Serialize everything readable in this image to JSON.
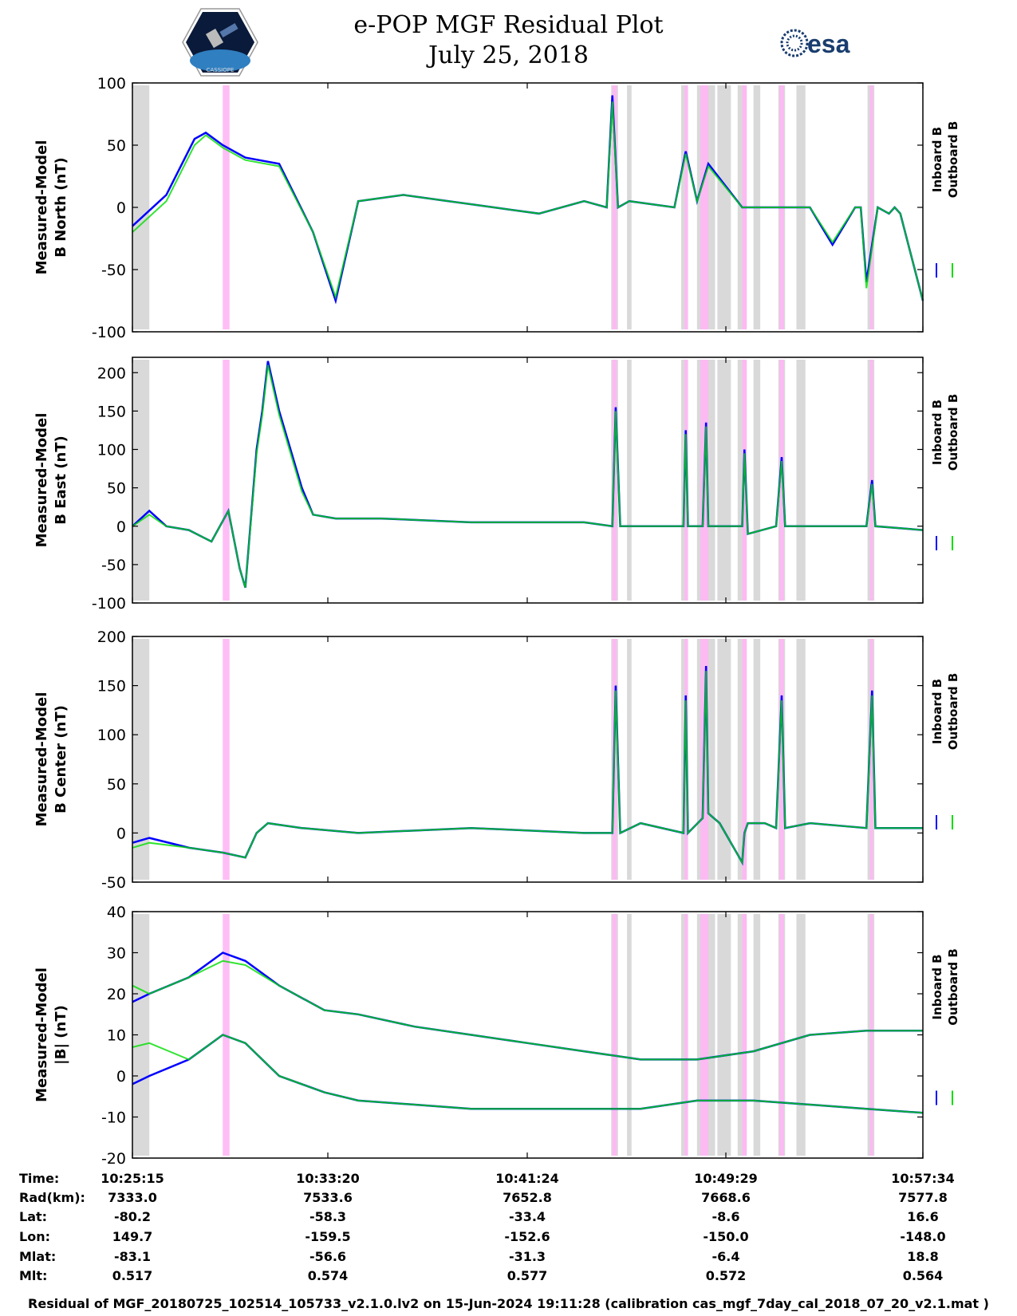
{
  "title": "e-POP MGF Residual Plot",
  "date": "July 25, 2018",
  "logos": {
    "esa_text": "esa",
    "cassiope_text": "CASSIOPE"
  },
  "colors": {
    "inboard": "#0000ff",
    "outboard": "#00dd00",
    "gray_band": "#d9d9d9",
    "pink_band": "#ffb6f5"
  },
  "legend": {
    "inboard_label": "Inboard B",
    "outboard_label": "Outboard B"
  },
  "chart_data": [
    {
      "type": "line",
      "ylabel_line1": "Measured-Model",
      "ylabel_line2": "B North (nT)",
      "ylim": [
        -100,
        100
      ],
      "yticks": [
        -100,
        -50,
        0,
        50,
        100
      ],
      "x": [
        0,
        30,
        55,
        65,
        80,
        100,
        130,
        160,
        180,
        200,
        240,
        280,
        320,
        360,
        400,
        420,
        425,
        430,
        440,
        480,
        490,
        500,
        510,
        540,
        560,
        580,
        600,
        620,
        640,
        645,
        650,
        660,
        670,
        675,
        680,
        700
      ],
      "series": [
        {
          "name": "Inboard B",
          "values": [
            -15,
            10,
            55,
            60,
            50,
            40,
            35,
            -20,
            -75,
            5,
            10,
            5,
            0,
            -5,
            5,
            0,
            90,
            0,
            5,
            0,
            45,
            5,
            35,
            0,
            0,
            0,
            0,
            -30,
            0,
            0,
            -60,
            0,
            -5,
            0,
            -5,
            -75
          ]
        },
        {
          "name": "Outboard B",
          "values": [
            -20,
            5,
            50,
            58,
            48,
            38,
            33,
            -20,
            -72,
            5,
            10,
            5,
            0,
            -5,
            5,
            0,
            85,
            0,
            5,
            0,
            43,
            5,
            33,
            0,
            0,
            0,
            0,
            -28,
            0,
            0,
            -65,
            0,
            -5,
            0,
            -5,
            -75
          ]
        }
      ],
      "gray_bands": [
        [
          0,
          15
        ],
        [
          424,
          430
        ],
        [
          438,
          442
        ],
        [
          486,
          492
        ],
        [
          500,
          516
        ],
        [
          518,
          530
        ],
        [
          536,
          544
        ],
        [
          550,
          556
        ],
        [
          572,
          578
        ],
        [
          588,
          596
        ],
        [
          651,
          657
        ]
      ],
      "pink_bands": [
        [
          80,
          86
        ],
        [
          425,
          429
        ],
        [
          489,
          492
        ],
        [
          503,
          510
        ],
        [
          540,
          544
        ],
        [
          573,
          577
        ],
        [
          653,
          656
        ]
      ]
    },
    {
      "type": "line",
      "ylabel_line1": "Measured-Model",
      "ylabel_line2": "B East (nT)",
      "ylim": [
        -100,
        220
      ],
      "yticks": [
        -100,
        -50,
        0,
        50,
        100,
        150,
        200
      ],
      "x": [
        0,
        15,
        30,
        50,
        70,
        85,
        95,
        100,
        110,
        115,
        120,
        130,
        150,
        160,
        180,
        220,
        300,
        400,
        425,
        428,
        432,
        450,
        488,
        490,
        492,
        505,
        508,
        510,
        520,
        540,
        542,
        545,
        570,
        575,
        578,
        600,
        650,
        655,
        658,
        700
      ],
      "series": [
        {
          "name": "Inboard B",
          "values": [
            0,
            20,
            0,
            -5,
            -20,
            20,
            -55,
            -80,
            100,
            150,
            215,
            150,
            50,
            15,
            10,
            10,
            5,
            5,
            0,
            155,
            0,
            0,
            0,
            125,
            0,
            0,
            135,
            0,
            0,
            0,
            100,
            -10,
            0,
            90,
            0,
            0,
            0,
            60,
            0,
            -5
          ]
        },
        {
          "name": "Outboard B",
          "values": [
            0,
            15,
            0,
            -5,
            -20,
            20,
            -55,
            -80,
            95,
            145,
            210,
            145,
            45,
            15,
            10,
            10,
            5,
            5,
            0,
            150,
            0,
            0,
            0,
            120,
            0,
            0,
            130,
            0,
            0,
            0,
            95,
            -10,
            0,
            85,
            0,
            0,
            0,
            55,
            0,
            -5
          ]
        }
      ],
      "gray_bands": [
        [
          0,
          15
        ],
        [
          424,
          430
        ],
        [
          438,
          442
        ],
        [
          486,
          492
        ],
        [
          500,
          516
        ],
        [
          518,
          530
        ],
        [
          536,
          544
        ],
        [
          550,
          556
        ],
        [
          572,
          578
        ],
        [
          588,
          596
        ],
        [
          651,
          657
        ]
      ],
      "pink_bands": [
        [
          80,
          86
        ],
        [
          425,
          429
        ],
        [
          489,
          492
        ],
        [
          503,
          510
        ],
        [
          540,
          544
        ],
        [
          573,
          577
        ],
        [
          653,
          656
        ]
      ]
    },
    {
      "type": "line",
      "ylabel_line1": "Measured-Model",
      "ylabel_line2": "B Center (nT)",
      "ylim": [
        -50,
        200
      ],
      "yticks": [
        -50,
        0,
        50,
        100,
        150,
        200
      ],
      "x": [
        0,
        15,
        50,
        80,
        100,
        110,
        120,
        150,
        200,
        300,
        400,
        425,
        428,
        432,
        450,
        488,
        490,
        492,
        505,
        508,
        510,
        520,
        540,
        542,
        545,
        560,
        570,
        575,
        578,
        600,
        650,
        655,
        658,
        700
      ],
      "series": [
        {
          "name": "Inboard B",
          "values": [
            -10,
            -5,
            -15,
            -20,
            -25,
            0,
            10,
            5,
            0,
            5,
            0,
            0,
            150,
            0,
            10,
            0,
            140,
            0,
            15,
            170,
            20,
            10,
            -30,
            0,
            10,
            10,
            5,
            140,
            5,
            10,
            5,
            145,
            5,
            5
          ]
        },
        {
          "name": "Outboard B",
          "values": [
            -15,
            -10,
            -15,
            -20,
            -25,
            0,
            10,
            5,
            0,
            5,
            0,
            0,
            145,
            0,
            10,
            0,
            135,
            0,
            15,
            165,
            20,
            10,
            -30,
            0,
            10,
            10,
            5,
            135,
            5,
            10,
            5,
            140,
            5,
            5
          ]
        }
      ],
      "gray_bands": [
        [
          0,
          15
        ],
        [
          424,
          430
        ],
        [
          438,
          442
        ],
        [
          486,
          492
        ],
        [
          500,
          516
        ],
        [
          518,
          530
        ],
        [
          536,
          544
        ],
        [
          550,
          556
        ],
        [
          572,
          578
        ],
        [
          588,
          596
        ],
        [
          651,
          657
        ]
      ],
      "pink_bands": [
        [
          80,
          86
        ],
        [
          425,
          429
        ],
        [
          489,
          492
        ],
        [
          503,
          510
        ],
        [
          540,
          544
        ],
        [
          573,
          577
        ],
        [
          653,
          656
        ]
      ]
    },
    {
      "type": "line",
      "ylabel_line1": "Measured-Model",
      "ylabel_line2": "|B| (nT)",
      "ylim": [
        -20,
        40
      ],
      "yticks": [
        -20,
        -10,
        0,
        10,
        20,
        30,
        40
      ],
      "x": [
        0,
        15,
        50,
        80,
        100,
        130,
        170,
        200,
        250,
        300,
        350,
        400,
        450,
        500,
        550,
        600,
        650,
        700
      ],
      "series": [
        {
          "name": "Inboard B (upper envelope)",
          "values": [
            18,
            20,
            24,
            30,
            28,
            22,
            16,
            15,
            12,
            10,
            8,
            6,
            4,
            4,
            6,
            10,
            11,
            11
          ]
        },
        {
          "name": "Inboard B (lower envelope)",
          "values": [
            -2,
            0,
            4,
            10,
            8,
            0,
            -4,
            -6,
            -7,
            -8,
            -8,
            -8,
            -8,
            -6,
            -6,
            -7,
            -8,
            -9
          ]
        },
        {
          "name": "Outboard B (upper envelope)",
          "values": [
            22,
            20,
            24,
            28,
            27,
            22,
            16,
            15,
            12,
            10,
            8,
            6,
            4,
            4,
            6,
            10,
            11,
            11
          ]
        },
        {
          "name": "Outboard B (lower envelope)",
          "values": [
            7,
            8,
            4,
            10,
            8,
            0,
            -4,
            -6,
            -7,
            -8,
            -8,
            -8,
            -8,
            -6,
            -6,
            -7,
            -8,
            -9
          ]
        }
      ],
      "gray_bands": [
        [
          0,
          15
        ],
        [
          424,
          430
        ],
        [
          438,
          442
        ],
        [
          486,
          492
        ],
        [
          500,
          516
        ],
        [
          518,
          530
        ],
        [
          536,
          544
        ],
        [
          550,
          556
        ],
        [
          572,
          578
        ],
        [
          588,
          596
        ],
        [
          651,
          657
        ]
      ],
      "pink_bands": [
        [
          80,
          86
        ],
        [
          425,
          429
        ],
        [
          489,
          492
        ],
        [
          503,
          510
        ],
        [
          540,
          544
        ],
        [
          573,
          577
        ],
        [
          653,
          656
        ]
      ]
    }
  ],
  "info_table": {
    "labels": [
      "Time:",
      "Rad(km):",
      "Lat:",
      "Lon:",
      "Mlat:",
      "Mlt:"
    ],
    "columns": [
      {
        "values": [
          "10:25:15",
          "7333.0",
          "-80.2",
          "149.7",
          "-83.1",
          "0.517"
        ]
      },
      {
        "values": [
          "10:33:20",
          "7533.6",
          "-58.3",
          "-159.5",
          "-56.6",
          "0.574"
        ]
      },
      {
        "values": [
          "10:41:24",
          "7652.8",
          "-33.4",
          "-152.6",
          "-31.3",
          "0.577"
        ]
      },
      {
        "values": [
          "10:49:29",
          "7668.6",
          "-8.6",
          "-150.0",
          "-6.4",
          "0.572"
        ]
      },
      {
        "values": [
          "10:57:34",
          "7577.8",
          "16.6",
          "-148.0",
          "18.8",
          "0.564"
        ]
      }
    ]
  },
  "footer": "Residual of MGF_20180725_102514_105733_v2.1.0.lv2 on 15-Jun-2024 19:11:28 (calibration cas_mgf_7day_cal_2018_07_20_v2.1.mat )"
}
